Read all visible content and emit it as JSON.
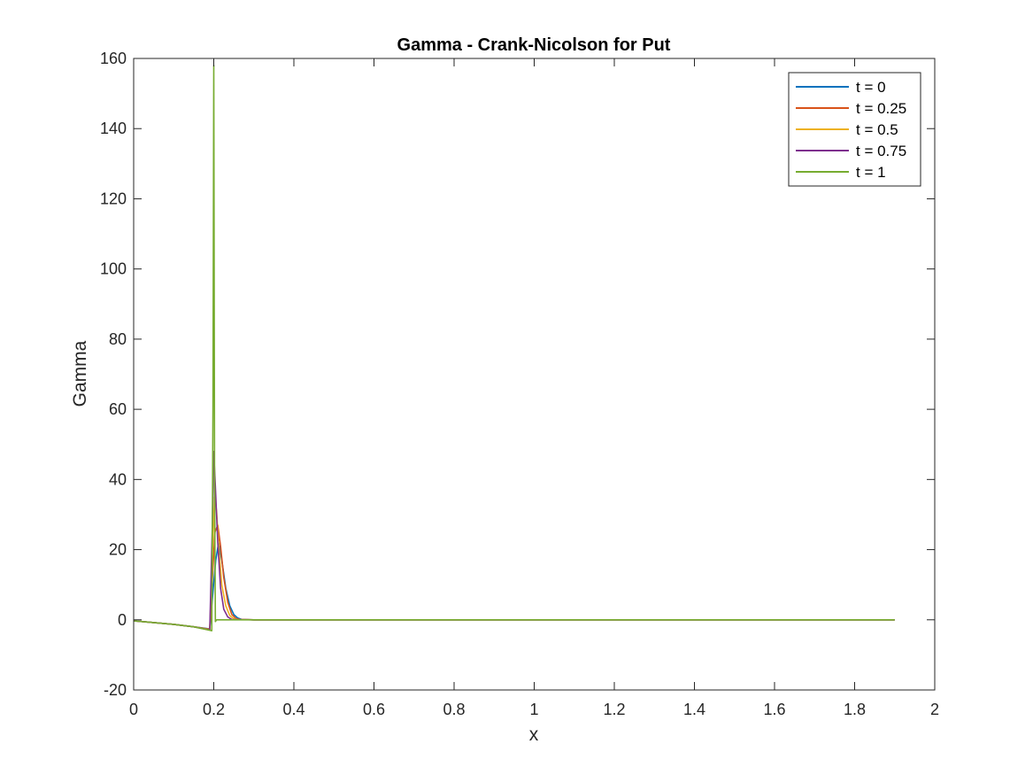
{
  "chart_data": {
    "type": "line",
    "title": "Gamma - Crank-Nicolson for Put",
    "xlabel": "x",
    "ylabel": "Gamma",
    "xlim": [
      0,
      2
    ],
    "ylim": [
      -20,
      160
    ],
    "xticks": [
      0,
      0.2,
      0.4,
      0.6,
      0.8,
      1,
      1.2,
      1.4,
      1.6,
      1.8,
      2
    ],
    "xtick_labels": [
      "0",
      "0.2",
      "0.4",
      "0.6",
      "0.8",
      "1",
      "1.2",
      "1.4",
      "1.6",
      "1.8",
      "2"
    ],
    "yticks": [
      -20,
      0,
      20,
      40,
      60,
      80,
      100,
      120,
      140,
      160
    ],
    "ytick_labels": [
      "-20",
      "0",
      "20",
      "40",
      "60",
      "80",
      "100",
      "120",
      "140",
      "160"
    ],
    "grid": false,
    "legend_position": "top-right",
    "series": [
      {
        "name": "t = 0",
        "color": "#0072BD",
        "points": [
          [
            0,
            -0.3
          ],
          [
            0.05,
            -0.8
          ],
          [
            0.1,
            -1.3
          ],
          [
            0.15,
            -2.0
          ],
          [
            0.19,
            -2.6
          ],
          [
            0.198,
            8
          ],
          [
            0.205,
            17
          ],
          [
            0.212,
            22
          ],
          [
            0.22,
            17
          ],
          [
            0.23,
            9
          ],
          [
            0.24,
            4
          ],
          [
            0.25,
            1.5
          ],
          [
            0.26,
            0.5
          ],
          [
            0.27,
            0.1
          ],
          [
            0.3,
            0
          ],
          [
            1.9,
            0
          ]
        ]
      },
      {
        "name": "t = 0.25",
        "color": "#D95319",
        "points": [
          [
            0,
            -0.3
          ],
          [
            0.05,
            -0.8
          ],
          [
            0.1,
            -1.3
          ],
          [
            0.15,
            -2.0
          ],
          [
            0.19,
            -2.7
          ],
          [
            0.198,
            15
          ],
          [
            0.203,
            25
          ],
          [
            0.21,
            27
          ],
          [
            0.217,
            21
          ],
          [
            0.225,
            12
          ],
          [
            0.235,
            5
          ],
          [
            0.245,
            1.5
          ],
          [
            0.255,
            0.4
          ],
          [
            0.265,
            0.1
          ],
          [
            0.3,
            0
          ],
          [
            1.9,
            0
          ]
        ]
      },
      {
        "name": "t = 0.5",
        "color": "#EDB120",
        "points": [
          [
            0,
            -0.3
          ],
          [
            0.05,
            -0.8
          ],
          [
            0.1,
            -1.3
          ],
          [
            0.15,
            -2.0
          ],
          [
            0.19,
            -2.8
          ],
          [
            0.197,
            20
          ],
          [
            0.202,
            35
          ],
          [
            0.207,
            31
          ],
          [
            0.213,
            20
          ],
          [
            0.22,
            10
          ],
          [
            0.23,
            4
          ],
          [
            0.24,
            1.2
          ],
          [
            0.25,
            0.3
          ],
          [
            0.26,
            0.1
          ],
          [
            0.3,
            0
          ],
          [
            1.9,
            0
          ]
        ]
      },
      {
        "name": "t = 0.75",
        "color": "#7E2F8E",
        "points": [
          [
            0,
            -0.3
          ],
          [
            0.05,
            -0.8
          ],
          [
            0.1,
            -1.3
          ],
          [
            0.15,
            -2.0
          ],
          [
            0.19,
            -2.9
          ],
          [
            0.196,
            25
          ],
          [
            0.2,
            48
          ],
          [
            0.204,
            38
          ],
          [
            0.21,
            22
          ],
          [
            0.217,
            9
          ],
          [
            0.225,
            3
          ],
          [
            0.235,
            0.8
          ],
          [
            0.245,
            0.1
          ],
          [
            0.3,
            0
          ],
          [
            1.9,
            0
          ]
        ]
      },
      {
        "name": "t = 1",
        "color": "#77AC30",
        "points": [
          [
            0,
            -0.3
          ],
          [
            0.05,
            -0.8
          ],
          [
            0.1,
            -1.3
          ],
          [
            0.15,
            -2.0
          ],
          [
            0.195,
            -3.1
          ],
          [
            0.198,
            60
          ],
          [
            0.2,
            158
          ],
          [
            0.202,
            40
          ],
          [
            0.204,
            -0.5
          ],
          [
            0.207,
            0
          ],
          [
            1.9,
            0
          ]
        ]
      }
    ]
  }
}
